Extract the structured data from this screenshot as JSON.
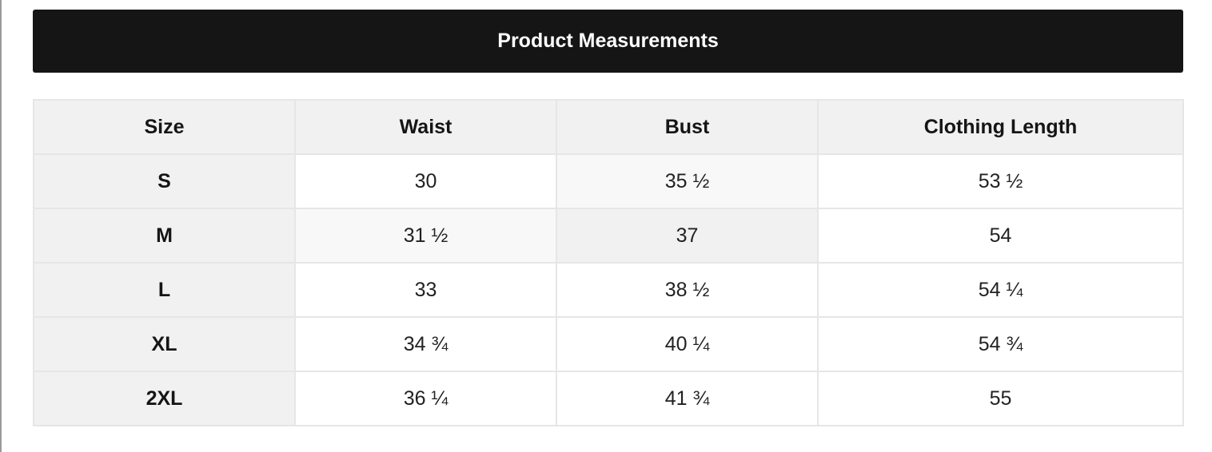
{
  "title": "Product Measurements",
  "headers": [
    "Size",
    "Waist",
    "Bust",
    "Clothing Length"
  ],
  "rows": [
    [
      "S",
      "30",
      "35 ½",
      "53 ½"
    ],
    [
      "M",
      "31 ½",
      "37",
      "54"
    ],
    [
      "L",
      "33",
      "38 ½",
      "54 ¼"
    ],
    [
      "XL",
      "34 ¾",
      "40 ¼",
      "54 ¾"
    ],
    [
      "2XL",
      "36 ¼",
      "41 ¾",
      "55"
    ]
  ]
}
